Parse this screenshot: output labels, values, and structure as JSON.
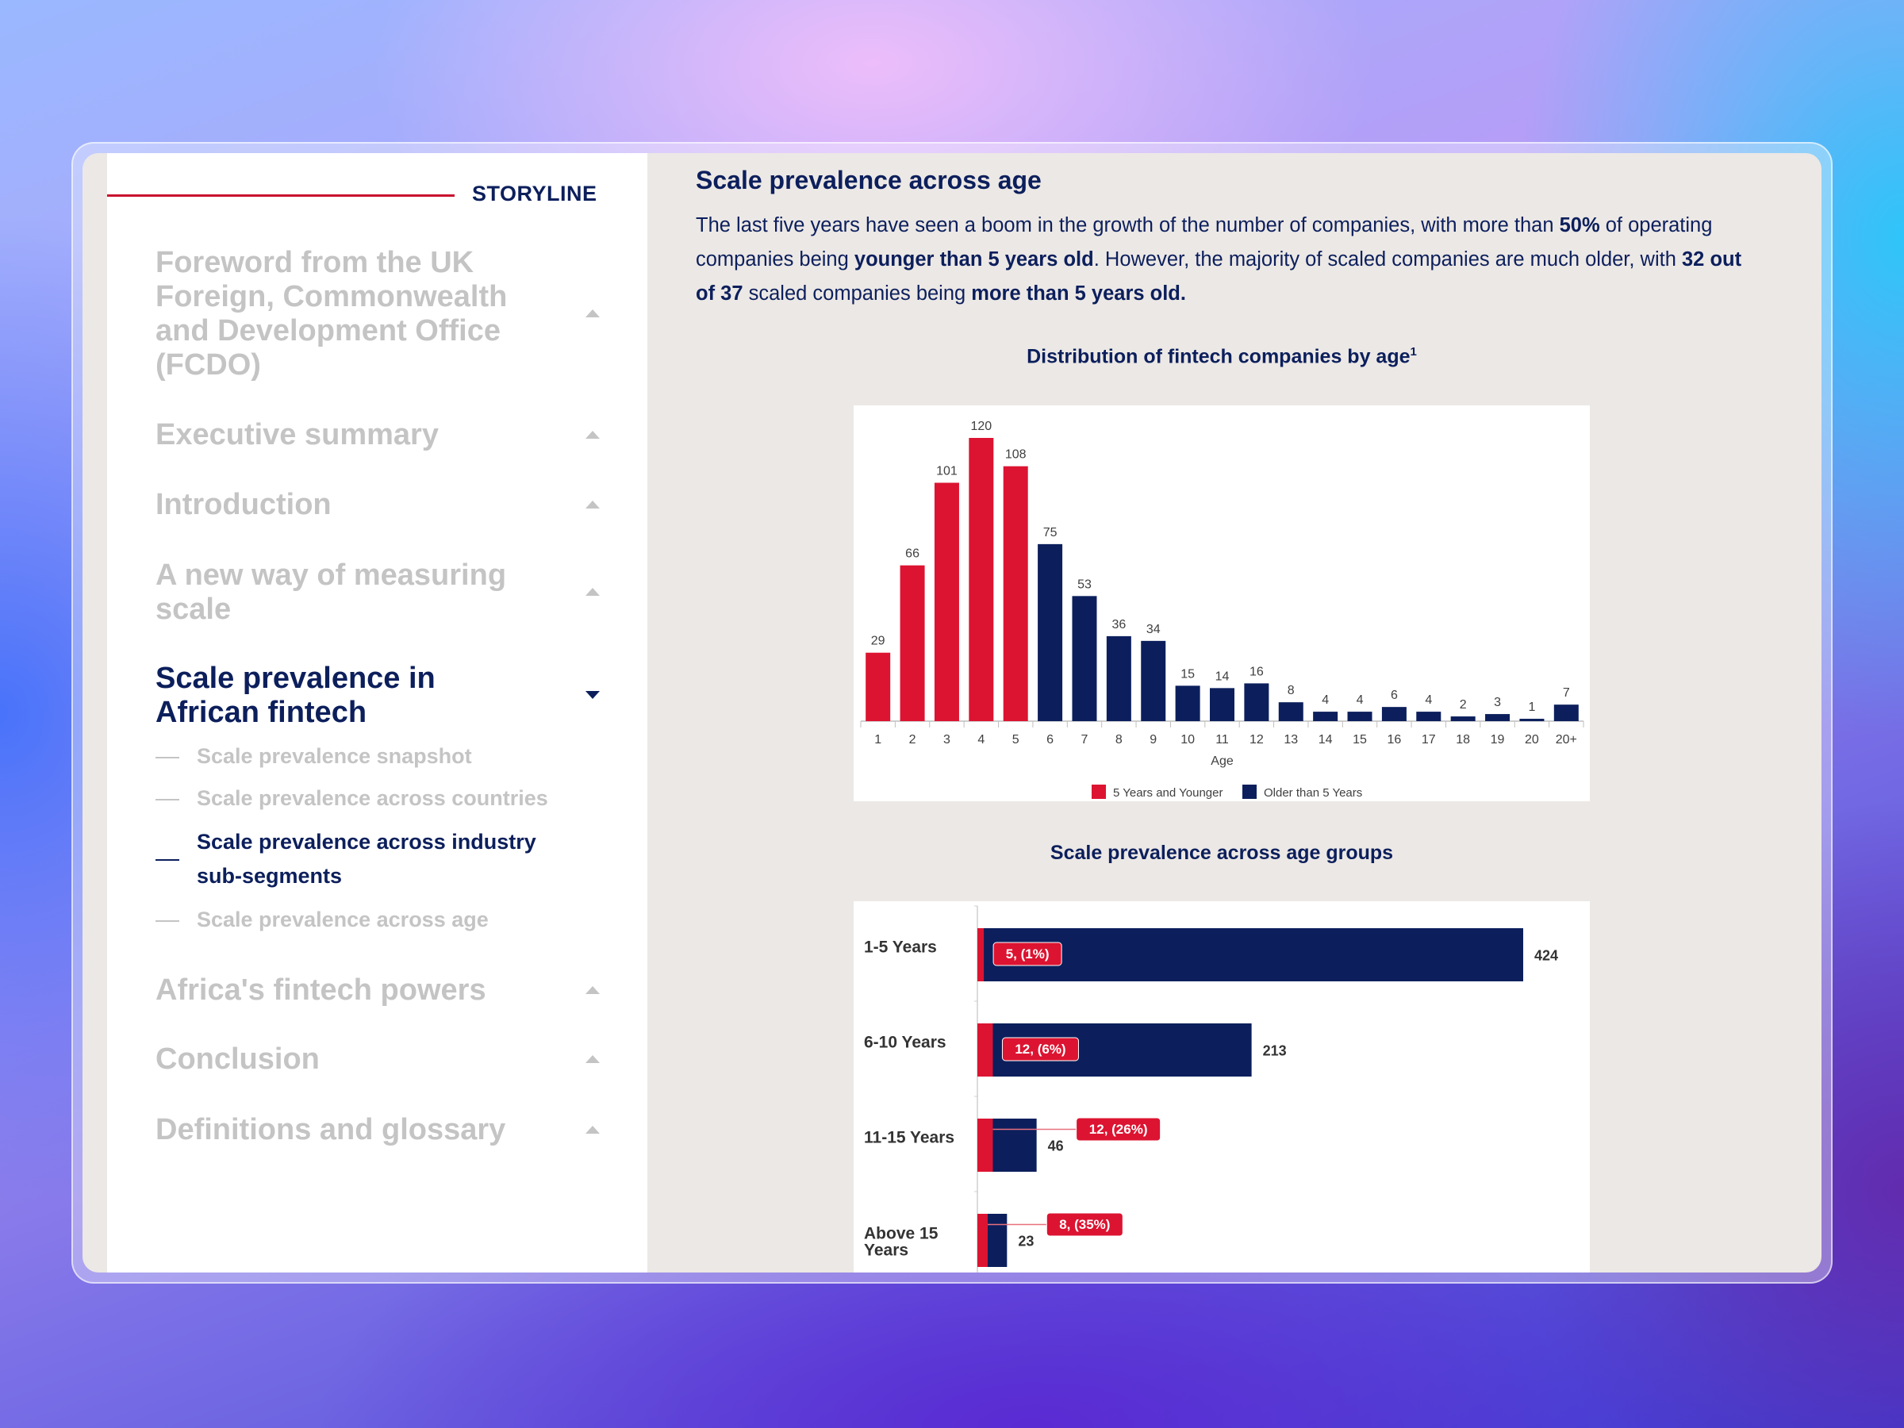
{
  "sidebar": {
    "header": "STORYLINE",
    "items": [
      {
        "label": "Foreword from the UK Foreign, Commonwealth and Development Office (FCDO)",
        "expanded": false
      },
      {
        "label": "Executive summary",
        "expanded": false
      },
      {
        "label": "Introduction",
        "expanded": false
      },
      {
        "label": "A new way of measuring scale",
        "expanded": false
      },
      {
        "label": "Scale prevalence in African fintech",
        "expanded": true,
        "active": true
      },
      {
        "label": "Africa's fintech powers",
        "expanded": false
      },
      {
        "label": "Conclusion",
        "expanded": false
      },
      {
        "label": "Definitions and glossary",
        "expanded": false
      }
    ],
    "subitems": [
      {
        "label": "Scale prevalence snapshot",
        "active": false
      },
      {
        "label": "Scale prevalence across countries",
        "active": false
      },
      {
        "label": "Scale prevalence across industry sub-segments",
        "active": true
      },
      {
        "label": "Scale prevalence across age",
        "active": false
      }
    ]
  },
  "main": {
    "title": "Scale prevalence across age",
    "paragraph": [
      {
        "text": "The last five years have seen a boom in the growth of the number of companies, with more than ",
        "bold": false
      },
      {
        "text": "50%",
        "bold": true
      },
      {
        "text": " of operating companies being ",
        "bold": false
      },
      {
        "text": "younger than 5 years old",
        "bold": true
      },
      {
        "text": ". However, the majority of scaled companies are much older, with ",
        "bold": false
      },
      {
        "text": "32 out of 37",
        "bold": true
      },
      {
        "text": " scaled companies being ",
        "bold": false
      },
      {
        "text": "more than 5 years old.",
        "bold": true
      }
    ]
  },
  "colors": {
    "navy": "#0c1f5c",
    "red": "#dc1431",
    "muted": "#c4c4c4",
    "panel": "#ece8e5"
  },
  "chart_data": [
    {
      "type": "bar",
      "title": "Distribution of fintech companies by age",
      "title_footnote": "1",
      "xlabel": "Age",
      "ylabel": "",
      "categories": [
        "1",
        "2",
        "3",
        "4",
        "5",
        "6",
        "7",
        "8",
        "9",
        "10",
        "11",
        "12",
        "13",
        "14",
        "15",
        "16",
        "17",
        "18",
        "19",
        "20",
        "20+"
      ],
      "values": [
        29,
        66,
        101,
        120,
        108,
        75,
        53,
        36,
        34,
        15,
        14,
        16,
        8,
        4,
        4,
        6,
        4,
        2,
        3,
        1,
        7
      ],
      "series": [
        {
          "name": "5 Years and Younger",
          "color": "#dc1431",
          "categories": [
            "1",
            "2",
            "3",
            "4",
            "5"
          ]
        },
        {
          "name": "Older than 5 Years",
          "color": "#0c1f5c",
          "categories": [
            "6",
            "7",
            "8",
            "9",
            "10",
            "11",
            "12",
            "13",
            "14",
            "15",
            "16",
            "17",
            "18",
            "19",
            "20",
            "20+"
          ]
        }
      ],
      "ylim": [
        0,
        120
      ],
      "grid": false,
      "legend": "bottom"
    },
    {
      "type": "bar",
      "orientation": "horizontal",
      "title": "Scale prevalence across age groups",
      "categories": [
        "1-5 Years",
        "6-10 Years",
        "11-15 Years",
        "Above 15 Years"
      ],
      "series": [
        {
          "role": "total",
          "color": "#0c1f5c",
          "values": [
            424,
            213,
            46,
            23
          ]
        },
        {
          "role": "scaled",
          "color": "#dc1431",
          "values": [
            5,
            12,
            12,
            8
          ]
        }
      ],
      "data_labels": {
        "total": [
          "424",
          "213",
          "46",
          "23"
        ],
        "scaled": [
          "5, (1%)",
          "12, (6%)",
          "12, (26%)",
          "8, (35%)"
        ]
      },
      "xlim": [
        0,
        424
      ],
      "grid": false
    }
  ]
}
